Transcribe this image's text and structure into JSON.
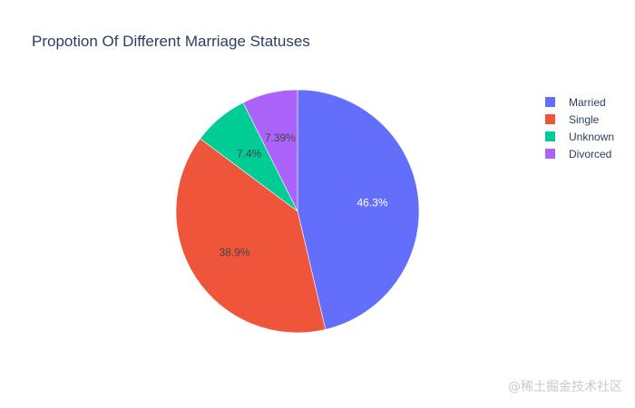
{
  "chart_data": {
    "type": "pie",
    "title": "Propotion Of Different Marriage Statuses",
    "slices": [
      {
        "label": "Married",
        "value": 46.3,
        "display": "46.3%",
        "color": "#636efa",
        "text_color": "#ffffff"
      },
      {
        "label": "Single",
        "value": 38.9,
        "display": "38.9%",
        "color": "#ef553b",
        "text_color": "#444444"
      },
      {
        "label": "Unknown",
        "value": 7.4,
        "display": "7.4%",
        "color": "#00cc96",
        "text_color": "#444444"
      },
      {
        "label": "Divorced",
        "value": 7.39,
        "display": "7.39%",
        "color": "#ab63fa",
        "text_color": "#444444"
      }
    ],
    "legend": [
      "Married",
      "Single",
      "Unknown",
      "Divorced"
    ],
    "legend_position": "top-right",
    "direction": "clockwise",
    "start": "top"
  },
  "watermark": "@稀土掘金技术社区"
}
